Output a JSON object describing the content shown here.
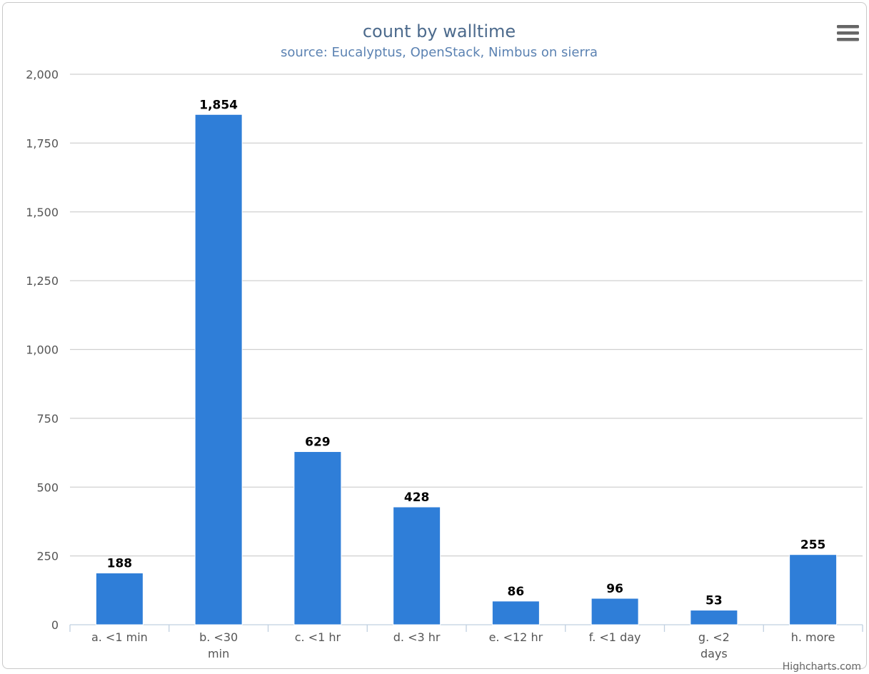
{
  "chart_data": {
    "type": "bar",
    "title": "count by walltime",
    "subtitle": "source: Eucalyptus, OpenStack, Nimbus on sierra",
    "categories": [
      "a. <1 min",
      "b. <30 min",
      "c. <1 hr",
      "d. <3 hr",
      "e. <12 hr",
      "f. <1 day",
      "g. <2 days",
      "h. more"
    ],
    "category_lines": [
      [
        "a. <1 min"
      ],
      [
        "b. <30",
        "min"
      ],
      [
        "c. <1 hr"
      ],
      [
        "d. <3 hr"
      ],
      [
        "e. <12 hr"
      ],
      [
        "f. <1 day"
      ],
      [
        "g. <2",
        "days"
      ],
      [
        "h. more"
      ]
    ],
    "values": [
      188,
      1854,
      629,
      428,
      86,
      96,
      53,
      255
    ],
    "data_labels": [
      "188",
      "1,854",
      "629",
      "428",
      "86",
      "96",
      "53",
      "255"
    ],
    "ylim": [
      0,
      2000
    ],
    "yticks": [
      0,
      250,
      500,
      750,
      1000,
      1250,
      1500,
      1750,
      2000
    ],
    "ytick_labels": [
      "0",
      "250",
      "500",
      "750",
      "1,000",
      "1,250",
      "1,500",
      "1,750",
      "2,000"
    ],
    "xlabel": "",
    "ylabel": "",
    "grid": true,
    "legend": "none",
    "bar_color": "#2f7ed8"
  },
  "credits": "Highcharts.com",
  "menu_icon": "hamburger-menu-icon"
}
